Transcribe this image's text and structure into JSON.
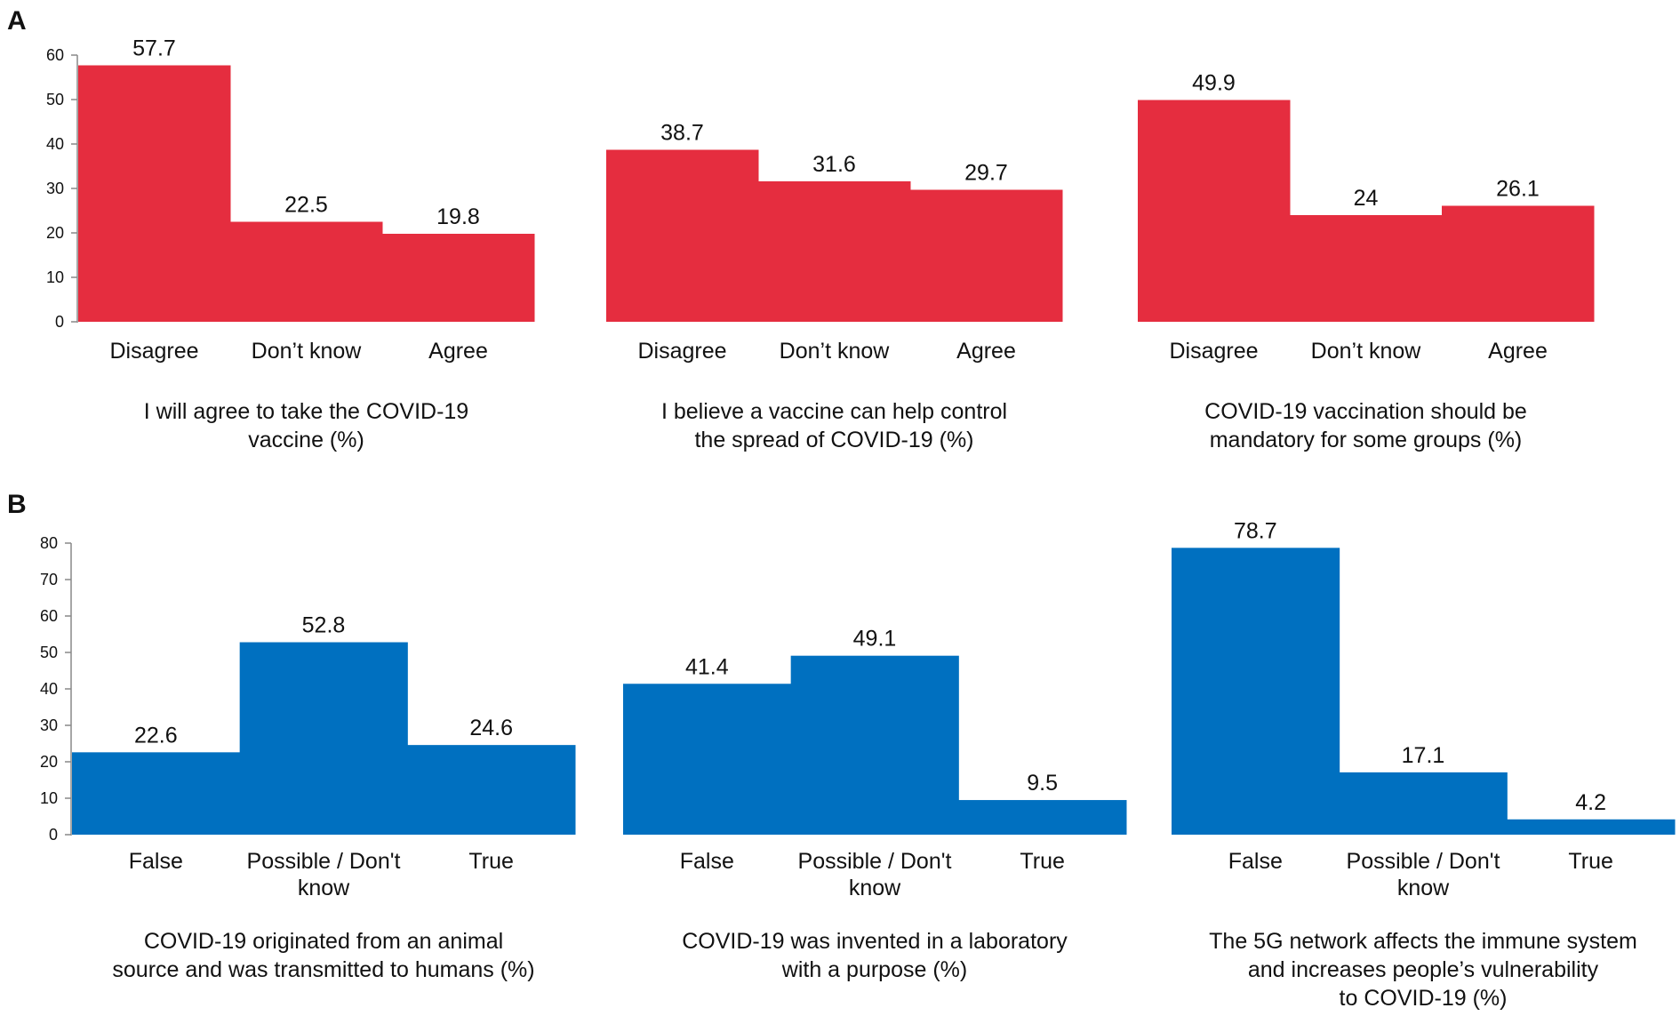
{
  "panels": [
    {
      "letter": "A",
      "color": "#e52d3f"
    },
    {
      "letter": "B",
      "color": "#0070c0"
    }
  ],
  "chart_data": [
    {
      "type": "bar",
      "panel": "A",
      "title": "I will agree to take the COVID-19 vaccine (%)",
      "caption_lines": [
        "I will agree to take the COVID-19",
        "vaccine (%)"
      ],
      "categories": [
        "Disagree",
        "Don’t know",
        "Agree"
      ],
      "category_lines": [
        [
          "Disagree"
        ],
        [
          "Don’t know"
        ],
        [
          "Agree"
        ]
      ],
      "values": [
        57.7,
        22.5,
        19.8
      ],
      "value_labels": [
        "57.7",
        "22.5",
        "19.8"
      ],
      "ylim": [
        0,
        60
      ],
      "yticks": [
        "0",
        "10",
        "20",
        "30",
        "40",
        "50",
        "60"
      ],
      "show_axis": true,
      "color": "#e52d3f"
    },
    {
      "type": "bar",
      "panel": "A",
      "title": "I believe a vaccine can help control the spread of COVID-19 (%)",
      "caption_lines": [
        "I believe a vaccine can help control",
        "the spread of COVID-19 (%)"
      ],
      "categories": [
        "Disagree",
        "Don’t know",
        "Agree"
      ],
      "category_lines": [
        [
          "Disagree"
        ],
        [
          "Don’t know"
        ],
        [
          "Agree"
        ]
      ],
      "values": [
        38.7,
        31.6,
        29.7
      ],
      "value_labels": [
        "38.7",
        "31.6",
        "29.7"
      ],
      "ylim": [
        0,
        60
      ],
      "show_axis": false,
      "color": "#e52d3f"
    },
    {
      "type": "bar",
      "panel": "A",
      "title": "COVID-19 vaccination should be mandatory for some groups (%)",
      "caption_lines": [
        "COVID-19 vaccination should be",
        "mandatory for some groups (%)"
      ],
      "categories": [
        "Disagree",
        "Don’t know",
        "Agree"
      ],
      "category_lines": [
        [
          "Disagree"
        ],
        [
          "Don’t know"
        ],
        [
          "Agree"
        ]
      ],
      "values": [
        49.9,
        24,
        26.1
      ],
      "value_labels": [
        "49.9",
        "24",
        "26.1"
      ],
      "ylim": [
        0,
        60
      ],
      "show_axis": false,
      "color": "#e52d3f"
    },
    {
      "type": "bar",
      "panel": "B",
      "title": "COVID-19 originated from an animal source and was transmitted to humans (%)",
      "caption_lines": [
        "COVID-19 originated from an animal",
        "source and was transmitted to humans (%)"
      ],
      "categories": [
        "False",
        "Possible / Don't know",
        "True"
      ],
      "category_lines": [
        [
          "False"
        ],
        [
          "Possible / Don't",
          "know"
        ],
        [
          "True"
        ]
      ],
      "values": [
        22.6,
        52.8,
        24.6
      ],
      "value_labels": [
        "22.6",
        "52.8",
        "24.6"
      ],
      "ylim": [
        0,
        80
      ],
      "yticks": [
        "0",
        "10",
        "20",
        "30",
        "40",
        "50",
        "60",
        "70",
        "80"
      ],
      "show_axis": true,
      "color": "#0070c0"
    },
    {
      "type": "bar",
      "panel": "B",
      "title": "COVID-19 was invented in a laboratory with a purpose (%)",
      "caption_lines": [
        "COVID-19 was invented in a laboratory",
        "with a purpose (%)"
      ],
      "categories": [
        "False",
        "Possible / Don't know",
        "True"
      ],
      "category_lines": [
        [
          "False"
        ],
        [
          "Possible / Don't",
          "know"
        ],
        [
          "True"
        ]
      ],
      "values": [
        41.4,
        49.1,
        9.5
      ],
      "value_labels": [
        "41.4",
        "49.1",
        "9.5"
      ],
      "ylim": [
        0,
        80
      ],
      "show_axis": false,
      "color": "#0070c0"
    },
    {
      "type": "bar",
      "panel": "B",
      "title": "The 5G network affects the immune system and increases people’s vulnerability to COVID-19 (%)",
      "caption_lines": [
        "The 5G network affects the immune system",
        "and increases people’s vulnerability",
        "to COVID-19 (%)"
      ],
      "categories": [
        "False",
        "Possible / Don't know",
        "True"
      ],
      "category_lines": [
        [
          "False"
        ],
        [
          "Possible / Don't",
          "know"
        ],
        [
          "True"
        ]
      ],
      "values": [
        78.7,
        17.1,
        4.2
      ],
      "value_labels": [
        "78.7",
        "17.1",
        "4.2"
      ],
      "ylim": [
        0,
        80
      ],
      "show_axis": false,
      "color": "#0070c0"
    }
  ]
}
